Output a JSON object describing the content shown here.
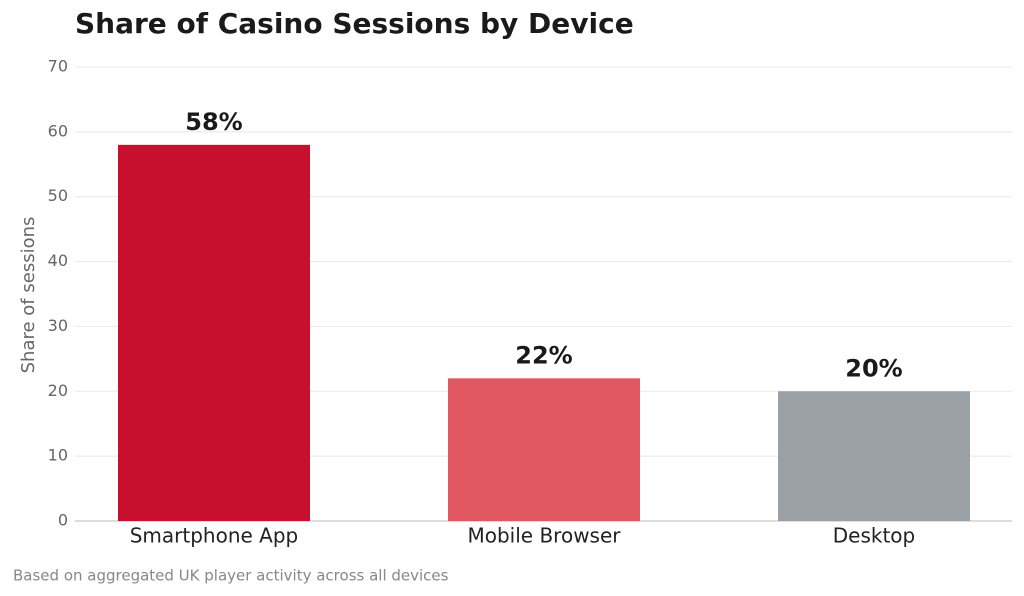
{
  "chart_data": {
    "type": "bar",
    "title": "Share of Casino Sessions by Device",
    "y_label": "Share of sessions",
    "footnote": "Based on aggregated UK player activity across all devices",
    "categories": [
      "Smartphone App",
      "Mobile Browser",
      "Desktop"
    ],
    "values": [
      58,
      22,
      20
    ],
    "value_labels": [
      "58%",
      "22%",
      "20%"
    ],
    "colors": [
      "#c8102e",
      "#e05762",
      "#9aa0a6"
    ],
    "ylim": [
      0,
      70
    ],
    "yticks": [
      0,
      10,
      20,
      30,
      40,
      50,
      60,
      70
    ],
    "grid": true
  }
}
